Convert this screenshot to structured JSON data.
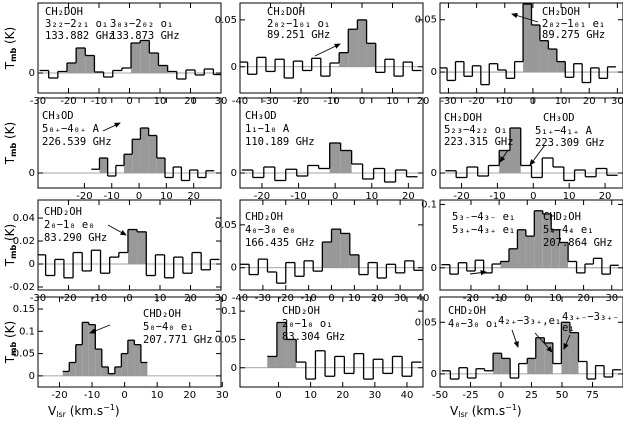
{
  "chart_data": [
    {
      "type": "step",
      "x": [
        -28,
        -25,
        -22,
        -19,
        -16,
        -13,
        -10,
        -7,
        -4,
        -1,
        2,
        5,
        8,
        11,
        14,
        17,
        20,
        23,
        26,
        29
      ],
      "values": [
        0.005,
        -0.01,
        0.003,
        0.02,
        0.05,
        0.035,
        0.002,
        -0.008,
        0.005,
        0.01,
        0.06,
        0.065,
        0.04,
        0.015,
        0.003,
        -0.012,
        0.006,
        -0.004,
        0.008,
        -0.003
      ],
      "shaded": [
        [
          -19,
          -13
        ],
        [
          2,
          11
        ]
      ],
      "xlim": [
        -30,
        30
      ],
      "xticks": [
        -30,
        -20,
        -10,
        0,
        10,
        20,
        30
      ],
      "ylim": [
        -0.04,
        0.14
      ],
      "yticks": [
        0
      ],
      "annotations": [
        "CH₂DOH",
        "3₂₂−2₂₁ o₁",
        "133.882 GHz",
        "3₀₃−2₀₂ o₁",
        "133.873 GHz"
      ],
      "ylabel": [
        "T",
        "mb",
        " (K)"
      ],
      "color": "#999999"
    },
    {
      "type": "step",
      "x": [
        -39,
        -36,
        -33,
        -30,
        -27,
        -24,
        -21,
        -18,
        -15,
        -12,
        -9,
        -6,
        -3,
        0,
        3,
        6,
        9,
        12,
        15,
        18
      ],
      "values": [
        0.005,
        -0.008,
        0.01,
        -0.005,
        0.008,
        -0.012,
        0.006,
        -0.004,
        0.009,
        -0.01,
        0.004,
        0.015,
        0.04,
        0.05,
        0.025,
        -0.006,
        0.008,
        -0.01,
        0.005,
        -0.004
      ],
      "shaded": [
        [
          -6,
          3
        ]
      ],
      "xlim": [
        -40,
        20
      ],
      "xticks": [
        -40,
        -30,
        -20,
        -10,
        0,
        10,
        20
      ],
      "ylim": [
        -0.028,
        0.068
      ],
      "yticks": [
        0,
        0.05
      ],
      "annotations": [
        "CH₂DOH",
        "2₀₂−1₀₁ o₁",
        "89.251 GHz"
      ],
      "color": "#999999"
    },
    {
      "type": "step",
      "x": [
        -32,
        -29,
        -26,
        -23,
        -20,
        -17,
        -14,
        -11,
        -8,
        -5,
        -2,
        1,
        4,
        7,
        10,
        13,
        16,
        19,
        22,
        25,
        28
      ],
      "values": [
        0.004,
        -0.008,
        0.01,
        -0.004,
        0.006,
        -0.012,
        0.008,
        0.002,
        -0.006,
        0.01,
        0.065,
        0.045,
        0.03,
        0.022,
        0.01,
        -0.005,
        0.008,
        -0.01,
        0.004,
        -0.006,
        0.005
      ],
      "shaded": [
        [
          -2,
          10
        ]
      ],
      "xlim": [
        -33,
        32
      ],
      "xticks": [
        -30,
        -20,
        -10,
        0,
        10,
        20,
        30
      ],
      "ylim": [
        -0.02,
        0.066
      ],
      "yticks": [
        0,
        0.05
      ],
      "annotations": [
        "CH₂DOH",
        "2₀₂−1₀₁ e₁",
        "89.275 GHz"
      ],
      "color": "#999999"
    },
    {
      "type": "step",
      "x": [
        -16,
        -13,
        -10,
        -7,
        -4,
        -1,
        2,
        5,
        8,
        11,
        14,
        17,
        20,
        23,
        26
      ],
      "values": [
        0.005,
        0.02,
        -0.004,
        0.01,
        0.025,
        0.045,
        0.06,
        0.05,
        0.02,
        -0.006,
        0.008,
        -0.01,
        0.004,
        -0.006,
        0.003
      ],
      "shaded": [
        [
          -13,
          -13
        ],
        [
          -4,
          8
        ]
      ],
      "xlim": [
        -37,
        30
      ],
      "xticks": [
        -20,
        -10,
        0,
        10,
        20
      ],
      "ylim": [
        -0.02,
        0.1
      ],
      "yticks": [
        0
      ],
      "annotations": [
        "CH₃OD",
        "5₀₊−4₀₊ A",
        "226.539 GHz"
      ],
      "ylabel": [
        "T",
        "mb",
        " (K)"
      ],
      "color": "#999999"
    },
    {
      "type": "step",
      "x": [
        -24,
        -21,
        -18,
        -15,
        -12,
        -9,
        -6,
        -3,
        0,
        3,
        6,
        9,
        12,
        15,
        18,
        21
      ],
      "values": [
        0.004,
        -0.006,
        0.008,
        -0.01,
        0.005,
        -0.004,
        0.01,
        0.006,
        0.04,
        0.03,
        0.012,
        -0.008,
        0.006,
        -0.012,
        0.004,
        -0.005
      ],
      "shaded": [
        [
          0,
          3
        ]
      ],
      "xlim": [
        -26,
        24
      ],
      "xticks": [
        -20,
        -10,
        0,
        10,
        20
      ],
      "ylim": [
        -0.02,
        0.1
      ],
      "yticks": [
        0
      ],
      "annotations": [
        "CH₃OD",
        "1₁−1₀ A",
        "110.189 GHz"
      ],
      "color": "#999999"
    },
    {
      "type": "step",
      "x": [
        -23,
        -20,
        -17,
        -14,
        -11,
        -8,
        -5,
        -2,
        1,
        4,
        7,
        10,
        13,
        16,
        19,
        22
      ],
      "values": [
        0.003,
        -0.006,
        0.008,
        -0.004,
        0.01,
        0.03,
        0.06,
        0.01,
        -0.006,
        0.02,
        0.008,
        -0.01,
        0.004,
        -0.005,
        0.006,
        -0.003
      ],
      "shaded": [
        [
          -8,
          -5
        ]
      ],
      "xlim": [
        -26,
        25
      ],
      "xticks": [
        -20,
        -10,
        0,
        10,
        20
      ],
      "ylim": [
        -0.02,
        0.1
      ],
      "yticks": [
        0
      ],
      "annotations": [
        "CH₂DOH",
        "5₂₃−4₂₂ o₁",
        "223.315 GHz",
        "CH₃OD",
        "5₁₊−4₁₊ A",
        "223.309 GHz"
      ],
      "color": "#999999"
    },
    {
      "type": "step",
      "x": [
        -29,
        -26,
        -23,
        -20,
        -17,
        -14,
        -11,
        -8,
        -5,
        -2,
        1,
        4,
        7,
        10,
        13,
        16,
        19,
        22,
        25,
        28
      ],
      "values": [
        0.008,
        -0.01,
        0.004,
        -0.012,
        0.01,
        -0.006,
        0.012,
        -0.008,
        0.006,
        0.01,
        0.03,
        0.028,
        -0.01,
        0.008,
        -0.012,
        0.006,
        -0.008,
        0.01,
        -0.005,
        0.004
      ],
      "shaded": [
        [
          1,
          4
        ]
      ],
      "xlim": [
        -30,
        30
      ],
      "xticks": [
        -30,
        -20,
        -10,
        0,
        10,
        20,
        30
      ],
      "ylim": [
        -0.0226,
        0.0557
      ],
      "yticks": [
        -0.02,
        0,
        0.02,
        0.04
      ],
      "annotations": [
        "CHD₂OH",
        "2₀−1₀ e₀",
        "83.290 GHz"
      ],
      "ylabel": [
        "T",
        "mb",
        " (K)"
      ],
      "color": "#999999"
    },
    {
      "type": "step",
      "x": [
        -38,
        -34,
        -30,
        -26,
        -22,
        -18,
        -14,
        -10,
        -6,
        -2,
        2,
        6,
        10,
        14,
        18,
        22,
        26,
        30,
        34,
        38
      ],
      "values": [
        0.004,
        -0.008,
        0.01,
        -0.005,
        -0.018,
        0.006,
        -0.01,
        0.008,
        -0.004,
        0.03,
        0.045,
        0.04,
        0.015,
        -0.008,
        0.006,
        -0.012,
        0.004,
        -0.006,
        0.008,
        -0.003
      ],
      "shaded": [
        [
          -2,
          10
        ]
      ],
      "xlim": [
        -40,
        40
      ],
      "xticks": [
        -40,
        -30,
        -20,
        -10,
        0,
        10,
        20,
        30,
        40
      ],
      "ylim": [
        -0.026,
        0.079
      ],
      "yticks": [
        0,
        0.05
      ],
      "annotations": [
        "CHD₂OH",
        "4₀−3₀ e₀",
        "166.435 GHz"
      ],
      "color": "#999999"
    },
    {
      "type": "step",
      "x": [
        -29,
        -26,
        -23,
        -20,
        -17,
        -14,
        -11,
        -8,
        -5,
        -2,
        1,
        4,
        7,
        10,
        13,
        16,
        19,
        22,
        25,
        28,
        31
      ],
      "values": [
        0.005,
        -0.01,
        0.008,
        -0.005,
        0.012,
        -0.008,
        0.006,
        0.01,
        0.03,
        0.06,
        0.05,
        0.09,
        0.085,
        0.06,
        0.04,
        0.01,
        -0.008,
        0.006,
        0.015,
        -0.01,
        0.004
      ],
      "shaded": [
        [
          -8,
          13
        ]
      ],
      "xlim": [
        -31,
        34
      ],
      "xticks": [
        -20,
        -10,
        0,
        10,
        20,
        30
      ],
      "ylim": [
        -0.035,
        0.107
      ],
      "yticks": [
        0,
        0.1
      ],
      "annotations": [
        "5₃₋−4₃₋ e₁",
        "5₃₊−4₃₊ e₁",
        "CHD₂OH",
        "5₄−4₄ e₁",
        "207.864 GHz"
      ],
      "color": "#999999"
    },
    {
      "type": "step",
      "x": [
        -18,
        -16,
        -14,
        -12,
        -10,
        -8,
        -6,
        -4,
        -2,
        0,
        2,
        4,
        6
      ],
      "values": [
        0.01,
        0.03,
        0.07,
        0.12,
        0.115,
        0.06,
        0.02,
        0.005,
        0.02,
        0.05,
        0.08,
        0.07,
        0.03
      ],
      "shaded": [
        [
          -18,
          6
        ]
      ],
      "xlim": [
        -26.6,
        29.6
      ],
      "xticks": [
        -20,
        -10,
        0,
        10,
        20,
        30
      ],
      "ylim": [
        -0.025,
        0.177
      ],
      "yticks": [
        0,
        0.05,
        0.1,
        0.15
      ],
      "annotations": [
        "CHD₂OH",
        "5₀−4₀ e₁",
        "207.771 GHz"
      ],
      "ylabel": [
        "T",
        "mb",
        " (K)"
      ],
      "xlabel": [
        "V",
        "lsr",
        " (km.s",
        "−1",
        ")"
      ],
      "color": "#999999"
    },
    {
      "type": "step",
      "x": [
        -2,
        1,
        4,
        7,
        10,
        13,
        16,
        19,
        22,
        25,
        28,
        31,
        34,
        37,
        40,
        43
      ],
      "values": [
        0.02,
        0.08,
        0.05,
        0.01,
        -0.02,
        0.03,
        -0.015,
        0.02,
        -0.01,
        0.025,
        -0.02,
        0.015,
        -0.01,
        0.02,
        -0.015,
        0.01
      ],
      "shaded": [
        [
          -2,
          4
        ]
      ],
      "xlim": [
        -12,
        45
      ],
      "xticks": [
        0,
        10,
        20,
        30,
        40
      ],
      "ylim": [
        -0.034,
        0.125
      ],
      "yticks": [
        0,
        0.05,
        0.1
      ],
      "annotations": [
        "CHD₂OH",
        "2₀−1₀ o₁",
        "83.304 GHz"
      ],
      "color": "#999999"
    },
    {
      "type": "step",
      "x": [
        -45,
        -38,
        -31,
        -24,
        -17,
        -10,
        -3,
        4,
        11,
        18,
        25,
        32,
        39,
        46,
        53,
        60,
        67,
        74,
        81,
        88,
        95
      ],
      "values": [
        0.003,
        -0.005,
        0.006,
        -0.004,
        0.005,
        0.003,
        0.02,
        0.015,
        -0.004,
        0.01,
        0.015,
        0.035,
        0.03,
        0.01,
        0.05,
        0.04,
        0.012,
        -0.005,
        0.008,
        -0.003,
        0.004
      ],
      "shaded": [
        [
          -3,
          4
        ],
        [
          25,
          39
        ],
        [
          53,
          60
        ]
      ],
      "xlim": [
        -50,
        100
      ],
      "xticks": [
        -50,
        -25,
        0,
        25,
        50,
        75
      ],
      "ylim": [
        -0.0127,
        0.0745
      ],
      "yticks": [
        0,
        0.05
      ],
      "annotations": [
        "CHD₂OH",
        "4₀−3₀ o₁",
        "4₂₊−3₃₊,e₁",
        "4₃₊₋−3₃₊₋",
        "e₁"
      ],
      "xlabel": [
        "V",
        "lsr",
        " (km.s",
        "−1",
        ")"
      ],
      "color": "#999999"
    }
  ]
}
